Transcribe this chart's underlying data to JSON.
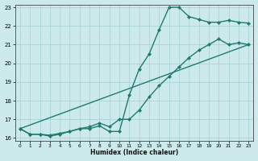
{
  "line1_x": [
    0,
    1,
    2,
    3,
    4,
    5,
    6,
    7,
    8,
    9,
    10,
    11,
    12,
    13,
    14,
    15,
    16,
    17,
    18,
    19,
    20,
    21,
    22,
    23
  ],
  "line1_y": [
    16.5,
    16.2,
    16.2,
    16.15,
    16.25,
    16.35,
    16.5,
    16.5,
    16.65,
    16.35,
    16.35,
    18.3,
    19.7,
    20.5,
    21.8,
    23.0,
    23.0,
    22.5,
    22.35,
    22.2,
    22.2,
    22.3,
    22.2,
    22.15
  ],
  "line2_x": [
    0,
    1,
    2,
    3,
    4,
    5,
    6,
    7,
    8,
    9,
    10,
    11,
    12,
    13,
    14,
    15,
    16,
    17,
    18,
    19,
    20,
    21,
    22,
    23
  ],
  "line2_y": [
    16.5,
    16.2,
    16.2,
    16.1,
    16.2,
    16.35,
    16.5,
    16.6,
    16.8,
    16.6,
    17.0,
    17.0,
    17.5,
    18.2,
    18.8,
    19.3,
    19.8,
    20.3,
    20.7,
    21.0,
    21.3,
    21.0,
    21.1,
    21.0
  ],
  "line3_x": [
    0,
    23
  ],
  "line3_y": [
    16.5,
    21.0
  ],
  "color": "#1e7b6e",
  "background_color": "#cceaeb",
  "grid_color": "#aad4d6",
  "xlabel": "Humidex (Indice chaleur)",
  "ylim": [
    16,
    23
  ],
  "xlim": [
    0,
    23
  ],
  "yticks": [
    16,
    17,
    18,
    19,
    20,
    21,
    22,
    23
  ],
  "xticks": [
    0,
    1,
    2,
    3,
    4,
    5,
    6,
    7,
    8,
    9,
    10,
    11,
    12,
    13,
    14,
    15,
    16,
    17,
    18,
    19,
    20,
    21,
    22,
    23
  ],
  "marker": "D",
  "markersize": 2.0,
  "linewidth": 1.0
}
